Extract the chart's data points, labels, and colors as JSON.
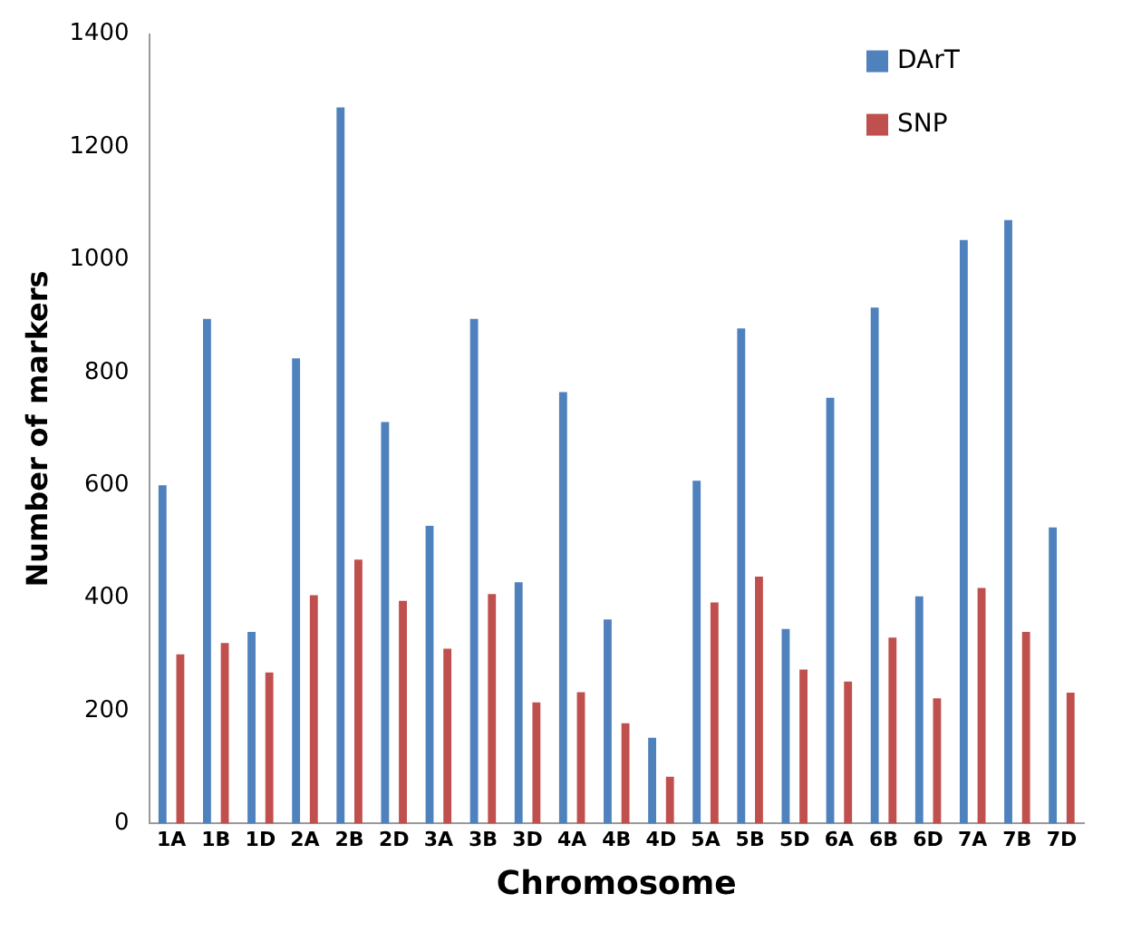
{
  "chart_data": {
    "type": "bar",
    "xlabel": "Chromosome",
    "ylabel": "Number of markers",
    "categories": [
      "1A",
      "1B",
      "1D",
      "2A",
      "2B",
      "2D",
      "3A",
      "3B",
      "3D",
      "4A",
      "4B",
      "4D",
      "5A",
      "5B",
      "5D",
      "6A",
      "6B",
      "6D",
      "7A",
      "7B",
      "7D"
    ],
    "series": [
      {
        "name": "DArT",
        "color": "#4f81bd",
        "values": [
          600,
          895,
          340,
          825,
          1270,
          712,
          528,
          895,
          428,
          765,
          362,
          152,
          608,
          878,
          345,
          755,
          915,
          403,
          1035,
          1070,
          525
        ]
      },
      {
        "name": "SNP",
        "color": "#c0504d",
        "values": [
          300,
          320,
          268,
          405,
          468,
          395,
          310,
          407,
          215,
          233,
          178,
          83,
          392,
          438,
          273,
          252,
          330,
          222,
          418,
          340,
          232
        ]
      }
    ],
    "ylim": [
      0,
      1400
    ],
    "yticks": [
      0,
      200,
      400,
      600,
      800,
      1000,
      1200,
      1400
    ],
    "grid": false,
    "legend": "top right"
  }
}
